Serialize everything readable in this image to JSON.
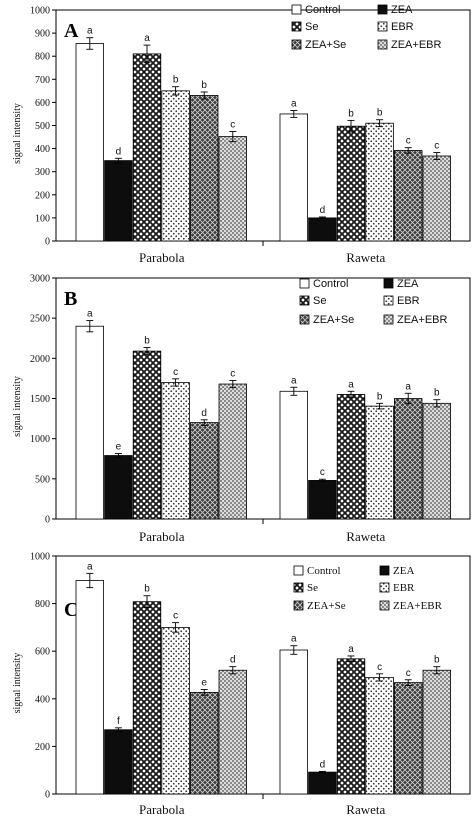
{
  "patterns": [
    {
      "key": "control",
      "fill": "#ffffff"
    },
    {
      "key": "zea",
      "fill": "#111111"
    },
    {
      "key": "se",
      "fill": "#555555"
    },
    {
      "key": "ebr",
      "fill": "#e6e6e6"
    },
    {
      "key": "zeaSe",
      "fill": "#6a6a6a"
    },
    {
      "key": "zeaEbr",
      "fill": "#bdbdbd"
    }
  ],
  "chart_data": [
    {
      "panel": "A",
      "type": "bar",
      "ylabel": "signal intensity",
      "ylim": [
        0,
        1000
      ],
      "yticks": [
        0,
        100,
        200,
        300,
        400,
        500,
        600,
        700,
        800,
        900,
        1000
      ],
      "categories": [
        "Parabola",
        "Raweta"
      ],
      "legend": [
        "Control",
        "ZEA",
        "Se",
        "EBR",
        "ZEA+Se",
        "ZEA+EBR"
      ],
      "series": [
        {
          "name": "Control",
          "values": [
            855,
            550
          ],
          "errors": [
            25,
            15
          ],
          "letters": [
            "a",
            "a"
          ]
        },
        {
          "name": "ZEA",
          "values": [
            348,
            100
          ],
          "errors": [
            10,
            4
          ],
          "letters": [
            "d",
            "d"
          ]
        },
        {
          "name": "Se",
          "values": [
            810,
            497
          ],
          "errors": [
            38,
            25
          ],
          "letters": [
            "a",
            "b"
          ]
        },
        {
          "name": "EBR",
          "values": [
            650,
            510
          ],
          "errors": [
            18,
            15
          ],
          "letters": [
            "b",
            "b"
          ]
        },
        {
          "name": "ZEA+Se",
          "values": [
            630,
            392
          ],
          "errors": [
            15,
            12
          ],
          "letters": [
            "b",
            "c"
          ]
        },
        {
          "name": "ZEA+EBR",
          "values": [
            452,
            368
          ],
          "errors": [
            22,
            15
          ],
          "letters": [
            "c",
            "c"
          ]
        }
      ]
    },
    {
      "panel": "B",
      "type": "bar",
      "ylabel": "signal intensity",
      "ylim": [
        0,
        3000
      ],
      "yticks": [
        0,
        500,
        1000,
        1500,
        2000,
        2500,
        3000
      ],
      "categories": [
        "Parabola",
        "Raweta"
      ],
      "legend": [
        "Control",
        "ZEA",
        "Se",
        "EBR",
        "ZEA+Se",
        "ZEA+EBR"
      ],
      "series": [
        {
          "name": "Control",
          "values": [
            2400,
            1590
          ],
          "errors": [
            70,
            50
          ],
          "letters": [
            "a",
            "a"
          ]
        },
        {
          "name": "ZEA",
          "values": [
            790,
            480
          ],
          "errors": [
            25,
            15
          ],
          "letters": [
            "e",
            "c"
          ]
        },
        {
          "name": "Se",
          "values": [
            2090,
            1550
          ],
          "errors": [
            45,
            40
          ],
          "letters": [
            "b",
            "a"
          ]
        },
        {
          "name": "EBR",
          "values": [
            1700,
            1405
          ],
          "errors": [
            45,
            35
          ],
          "letters": [
            "c",
            "b"
          ]
        },
        {
          "name": "ZEA+Se",
          "values": [
            1200,
            1500
          ],
          "errors": [
            35,
            65
          ],
          "letters": [
            "d",
            "a"
          ]
        },
        {
          "name": "ZEA+EBR",
          "values": [
            1680,
            1440
          ],
          "errors": [
            45,
            45
          ],
          "letters": [
            "c",
            "b"
          ]
        }
      ]
    },
    {
      "panel": "C",
      "type": "bar",
      "ylabel": "signal intensity",
      "ylim": [
        0,
        1000
      ],
      "yticks": [
        0,
        200,
        400,
        600,
        800,
        1000
      ],
      "categories": [
        "Parabola",
        "Raweta"
      ],
      "legend": [
        "Control",
        "ZEA",
        "Se",
        "EBR",
        "ZEA+Se",
        "ZEA+EBR"
      ],
      "series": [
        {
          "name": "Control",
          "values": [
            897,
            605
          ],
          "errors": [
            30,
            18
          ],
          "letters": [
            "a",
            "a"
          ]
        },
        {
          "name": "ZEA",
          "values": [
            270,
            92
          ],
          "errors": [
            8,
            3
          ],
          "letters": [
            "f",
            "d"
          ]
        },
        {
          "name": "Se",
          "values": [
            808,
            568
          ],
          "errors": [
            25,
            12
          ],
          "letters": [
            "b",
            "a"
          ]
        },
        {
          "name": "EBR",
          "values": [
            700,
            490
          ],
          "errors": [
            20,
            15
          ],
          "letters": [
            "c",
            "c"
          ]
        },
        {
          "name": "ZEA+Se",
          "values": [
            427,
            468
          ],
          "errors": [
            12,
            12
          ],
          "letters": [
            "e",
            "c"
          ]
        },
        {
          "name": "ZEA+EBR",
          "values": [
            520,
            520
          ],
          "errors": [
            15,
            15
          ],
          "letters": [
            "d",
            "b"
          ]
        }
      ]
    }
  ]
}
